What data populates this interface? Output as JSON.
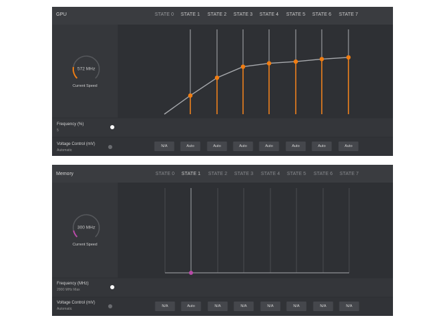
{
  "gpu": {
    "title": "GPU",
    "states": [
      "STATE 0",
      "STATE 1",
      "STATE 2",
      "STATE 3",
      "STATE 4",
      "STATE 5",
      "STATE 6",
      "STATE 7"
    ],
    "gauge": {
      "value": "572 MHz",
      "label": "Current Speed",
      "fill_fraction": 0.2
    },
    "frequency": {
      "label": "Frequency (%)",
      "sub": "5",
      "slider_fraction": 0.5
    },
    "voltage": {
      "label": "Voltage Control (mV)",
      "sub": "Automatic",
      "options": [
        "N/A",
        "Auto",
        "Auto",
        "Auto",
        "Auto",
        "Auto",
        "Auto",
        "Auto"
      ]
    },
    "curve_levels": [
      0,
      0.22,
      0.43,
      0.56,
      0.6,
      0.62,
      0.65,
      0.67
    ]
  },
  "memory": {
    "title": "Memory",
    "states": [
      "STATE 0",
      "STATE 1",
      "STATE 2",
      "STATE 3",
      "STATE 4",
      "STATE 5",
      "STATE 6",
      "STATE 7"
    ],
    "gauge": {
      "value": "300 MHz",
      "label": "Current Speed",
      "fill_fraction": 0.12
    },
    "frequency": {
      "label": "Frequency (MHz)",
      "sub": "2000 MHz Max",
      "slider_fraction": 0.0
    },
    "voltage": {
      "label": "Voltage Control (mV)",
      "sub": "Automatic",
      "options": [
        "N/A",
        "Auto",
        "N/A",
        "N/A",
        "N/A",
        "N/A",
        "N/A",
        "N/A"
      ]
    },
    "curve_levels": [
      0,
      0,
      0,
      0,
      0,
      0,
      0,
      0
    ]
  },
  "colors": {
    "gpu_accent": "#f07d12",
    "memory_accent": "#b84aa8"
  }
}
